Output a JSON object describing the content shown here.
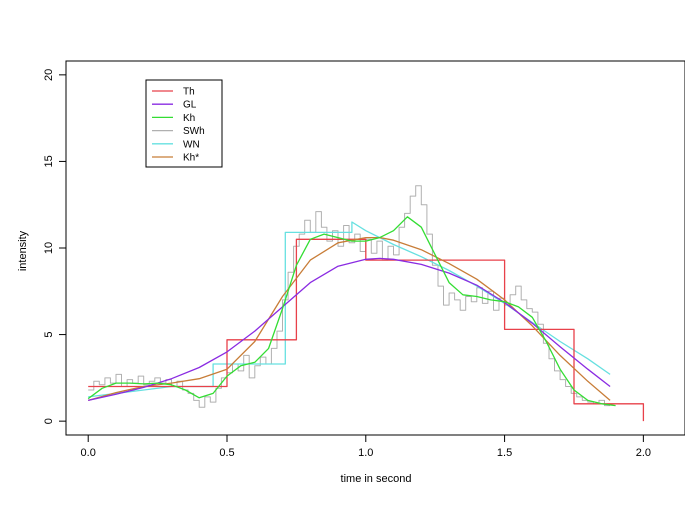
{
  "chart_data": {
    "type": "line",
    "title": "",
    "xlabel": "time in second",
    "ylabel": "intensity",
    "xlim": [
      -0.08,
      2.15
    ],
    "ylim": [
      -0.8,
      20.8
    ],
    "xticks": [
      0.0,
      0.5,
      1.0,
      1.5,
      2.0
    ],
    "xtick_labels": [
      "0.0",
      "0.5",
      "1.0",
      "1.5",
      "2.0"
    ],
    "yticks": [
      0,
      5,
      10,
      15,
      20
    ],
    "ytick_labels": [
      "0",
      "5",
      "10",
      "15",
      "20"
    ],
    "grid": false,
    "legend_position": "top-left",
    "series": [
      {
        "name": "Th",
        "color": "#e8414a",
        "style": "step",
        "x": [
          0.0,
          0.5,
          0.5,
          0.75,
          0.75,
          1.0,
          1.0,
          1.5,
          1.5,
          1.75,
          1.75,
          2.0,
          2.0
        ],
        "y": [
          2.0,
          2.0,
          4.7,
          4.7,
          10.5,
          10.5,
          9.3,
          9.3,
          5.3,
          5.3,
          1.0,
          1.0,
          0.0
        ]
      },
      {
        "name": "GL",
        "color": "#8a2be2",
        "style": "line",
        "x": [
          0.0,
          0.1,
          0.2,
          0.3,
          0.4,
          0.5,
          0.6,
          0.7,
          0.8,
          0.9,
          1.0,
          1.05,
          1.1,
          1.2,
          1.3,
          1.4,
          1.5,
          1.6,
          1.7,
          1.8,
          1.88
        ],
        "y": [
          1.2,
          1.55,
          1.95,
          2.45,
          3.1,
          4.0,
          5.2,
          6.6,
          8.0,
          8.95,
          9.35,
          9.4,
          9.35,
          9.05,
          8.55,
          7.85,
          6.85,
          5.65,
          4.3,
          3.0,
          2.0
        ]
      },
      {
        "name": "Kh",
        "color": "#33dd33",
        "style": "line",
        "x": [
          0.0,
          0.05,
          0.1,
          0.15,
          0.2,
          0.25,
          0.3,
          0.35,
          0.4,
          0.45,
          0.5,
          0.55,
          0.6,
          0.65,
          0.7,
          0.75,
          0.8,
          0.85,
          0.9,
          0.95,
          1.0,
          1.05,
          1.1,
          1.15,
          1.2,
          1.25,
          1.3,
          1.35,
          1.4,
          1.45,
          1.5,
          1.55,
          1.6,
          1.65,
          1.7,
          1.75,
          1.8,
          1.85,
          1.9
        ],
        "y": [
          1.3,
          1.9,
          2.2,
          2.2,
          2.15,
          2.2,
          2.1,
          1.8,
          1.35,
          1.6,
          2.6,
          3.2,
          3.4,
          4.2,
          6.5,
          9.0,
          10.5,
          10.8,
          10.6,
          10.4,
          10.4,
          10.6,
          11.0,
          11.8,
          11.2,
          9.6,
          8.0,
          7.3,
          7.2,
          7.0,
          6.9,
          6.6,
          6.0,
          4.6,
          3.0,
          1.8,
          1.2,
          1.0,
          0.9
        ]
      },
      {
        "name": "SWh",
        "color": "#b0b0b0",
        "style": "step",
        "x": [
          0.0,
          0.02,
          0.04,
          0.06,
          0.08,
          0.1,
          0.12,
          0.14,
          0.16,
          0.18,
          0.2,
          0.22,
          0.24,
          0.26,
          0.28,
          0.3,
          0.32,
          0.34,
          0.36,
          0.38,
          0.4,
          0.42,
          0.44,
          0.46,
          0.48,
          0.5,
          0.52,
          0.54,
          0.56,
          0.58,
          0.6,
          0.62,
          0.64,
          0.66,
          0.68,
          0.7,
          0.72,
          0.74,
          0.76,
          0.78,
          0.8,
          0.82,
          0.84,
          0.86,
          0.88,
          0.9,
          0.92,
          0.94,
          0.96,
          0.98,
          1.0,
          1.02,
          1.04,
          1.06,
          1.08,
          1.1,
          1.12,
          1.14,
          1.16,
          1.18,
          1.2,
          1.22,
          1.24,
          1.26,
          1.28,
          1.3,
          1.32,
          1.34,
          1.36,
          1.38,
          1.4,
          1.42,
          1.44,
          1.46,
          1.48,
          1.5,
          1.52,
          1.54,
          1.56,
          1.58,
          1.6,
          1.62,
          1.64,
          1.66,
          1.68,
          1.7,
          1.72,
          1.74,
          1.76,
          1.78,
          1.8,
          1.82,
          1.84,
          1.86,
          1.88
        ],
        "y": [
          1.8,
          2.3,
          2.1,
          2.5,
          2.2,
          2.7,
          2.0,
          2.4,
          2.2,
          2.6,
          2.1,
          2.3,
          2.5,
          2.2,
          2.4,
          2.0,
          2.3,
          1.8,
          1.6,
          1.2,
          0.8,
          1.4,
          1.1,
          1.9,
          2.5,
          2.8,
          3.3,
          2.9,
          3.8,
          2.5,
          3.2,
          3.7,
          3.3,
          4.2,
          5.2,
          7.0,
          8.6,
          10.1,
          10.8,
          11.6,
          10.9,
          12.1,
          11.2,
          10.4,
          11.0,
          10.1,
          11.3,
          10.3,
          10.8,
          9.8,
          10.5,
          9.7,
          10.4,
          9.3,
          10.1,
          9.6,
          11.2,
          12.0,
          13.0,
          13.6,
          12.5,
          10.8,
          9.0,
          7.8,
          6.7,
          7.4,
          7.0,
          6.4,
          7.2,
          6.9,
          7.7,
          6.8,
          7.5,
          6.4,
          7.1,
          6.7,
          7.3,
          7.8,
          7.0,
          6.5,
          6.3,
          5.6,
          4.5,
          3.6,
          2.9,
          2.4,
          2.0,
          1.6,
          1.4,
          1.2,
          1.1,
          1.0,
          1.2,
          0.9,
          0.9
        ]
      },
      {
        "name": "WN",
        "color": "#66e0e0",
        "style": "step",
        "x": [
          0.0,
          0.1,
          0.2,
          0.3,
          0.45,
          0.45,
          0.55,
          0.55,
          0.65,
          0.65,
          0.71,
          0.71,
          0.95,
          0.95,
          1.0,
          1.0,
          1.1,
          1.2,
          1.3,
          1.4,
          1.5,
          1.6,
          1.7,
          1.8,
          1.88
        ],
        "y": [
          1.4,
          1.6,
          1.8,
          2.0,
          2.0,
          3.3,
          3.3,
          3.3,
          3.3,
          3.3,
          3.3,
          10.9,
          10.9,
          11.5,
          11.0,
          11.0,
          10.2,
          9.5,
          8.7,
          7.8,
          6.8,
          5.7,
          4.6,
          3.6,
          2.7
        ]
      },
      {
        "name": "Kh*",
        "color": "#c87d38",
        "style": "line",
        "x": [
          0.0,
          0.1,
          0.2,
          0.3,
          0.4,
          0.5,
          0.6,
          0.7,
          0.8,
          0.9,
          1.0,
          1.05,
          1.1,
          1.2,
          1.3,
          1.4,
          1.5,
          1.6,
          1.7,
          1.8,
          1.88
        ],
        "y": [
          1.2,
          1.65,
          2.0,
          2.2,
          2.45,
          3.0,
          4.6,
          7.2,
          9.3,
          10.3,
          10.6,
          10.6,
          10.45,
          9.9,
          9.1,
          8.2,
          7.0,
          5.5,
          3.8,
          2.3,
          1.2
        ]
      }
    ]
  }
}
